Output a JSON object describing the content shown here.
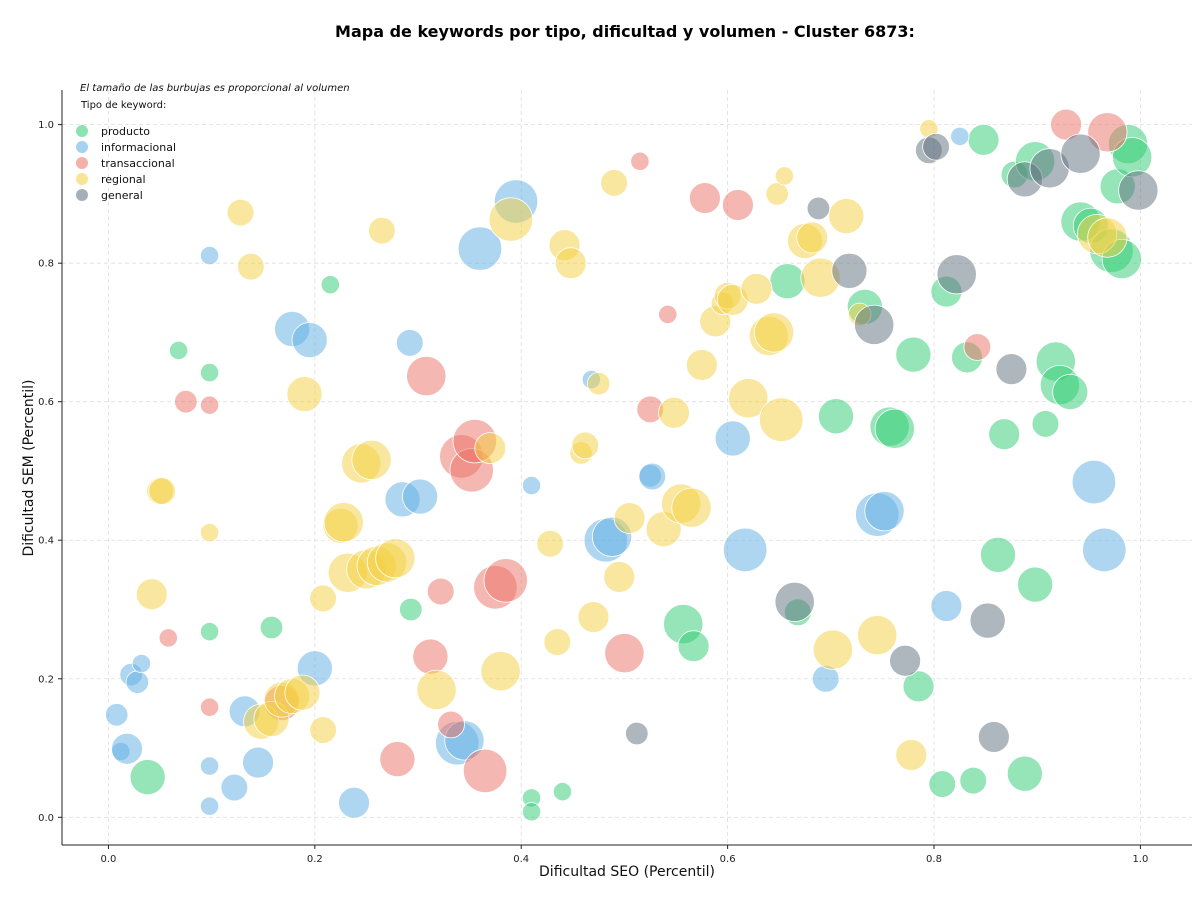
{
  "chart_data": {
    "type": "scatter",
    "title": "Mapa de keywords por tipo, dificultad y volumen - Cluster 6873:",
    "xlabel": "Dificultad SEO (Percentil)",
    "ylabel": "Dificultad SEM (Percentil)",
    "xlim": [
      -0.045,
      1.05
    ],
    "ylim": [
      -0.04,
      1.05
    ],
    "xticks": [
      "0.0",
      "0.2",
      "0.4",
      "0.6",
      "0.8",
      "1.0"
    ],
    "yticks": [
      "0.0",
      "0.2",
      "0.4",
      "0.6",
      "0.8",
      "1.0"
    ],
    "grid": true,
    "legend_placement": "top-left",
    "note": "El tamaño de las burbujas es proporcional al volumen",
    "legend_title": "Tipo de keyword:",
    "series": [
      {
        "name": "producto",
        "color": "#2ecc71",
        "points": [
          [
            0.038,
            0.058,
            3
          ],
          [
            0.068,
            0.674,
            1
          ],
          [
            0.098,
            0.642,
            1
          ],
          [
            0.098,
            0.268,
            1
          ],
          [
            0.158,
            0.274,
            1.5
          ],
          [
            0.215,
            0.769,
            1
          ],
          [
            0.293,
            0.3,
            1.5
          ],
          [
            0.41,
            0.028,
            1
          ],
          [
            0.41,
            0.008,
            1
          ],
          [
            0.44,
            0.037,
            1
          ],
          [
            0.557,
            0.279,
            3.5
          ],
          [
            0.567,
            0.247,
            2.5
          ],
          [
            0.658,
            0.774,
            3
          ],
          [
            0.668,
            0.296,
            2
          ],
          [
            0.705,
            0.579,
            3
          ],
          [
            0.733,
            0.737,
            3
          ],
          [
            0.757,
            0.564,
            3.5
          ],
          [
            0.762,
            0.561,
            3.5
          ],
          [
            0.78,
            0.668,
            3
          ],
          [
            0.785,
            0.189,
            2.5
          ],
          [
            0.808,
            0.048,
            2
          ],
          [
            0.812,
            0.759,
            2.5
          ],
          [
            0.832,
            0.664,
            2.5
          ],
          [
            0.838,
            0.053,
            2
          ],
          [
            0.848,
            0.978,
            2.5
          ],
          [
            0.862,
            0.379,
            3
          ],
          [
            0.868,
            0.553,
            2.5
          ],
          [
            0.878,
            0.928,
            2
          ],
          [
            0.888,
            0.063,
            3
          ],
          [
            0.898,
            0.336,
            3
          ],
          [
            0.898,
            0.947,
            3.5
          ],
          [
            0.908,
            0.568,
            2
          ],
          [
            0.918,
            0.658,
            3.5
          ],
          [
            0.922,
            0.624,
            3.5
          ],
          [
            0.932,
            0.614,
            3
          ],
          [
            0.942,
            0.86,
            3.5
          ],
          [
            0.952,
            0.854,
            3
          ],
          [
            0.978,
            0.911,
            3
          ],
          [
            0.988,
            0.972,
            3.5
          ],
          [
            0.992,
            0.953,
            3.5
          ],
          [
            0.972,
            0.818,
            4
          ],
          [
            0.982,
            0.806,
            3.5
          ]
        ]
      },
      {
        "name": "informacional",
        "color": "#5dade2",
        "points": [
          [
            0.008,
            0.148,
            1.5
          ],
          [
            0.012,
            0.095,
            1
          ],
          [
            0.018,
            0.099,
            2.5
          ],
          [
            0.022,
            0.206,
            1.5
          ],
          [
            0.028,
            0.195,
            1.5
          ],
          [
            0.032,
            0.222,
            1
          ],
          [
            0.098,
            0.811,
            1
          ],
          [
            0.098,
            0.074,
            1
          ],
          [
            0.098,
            0.016,
            1
          ],
          [
            0.122,
            0.043,
            2
          ],
          [
            0.132,
            0.153,
            2.5
          ],
          [
            0.145,
            0.079,
            2.5
          ],
          [
            0.178,
            0.705,
            3
          ],
          [
            0.195,
            0.689,
            3
          ],
          [
            0.2,
            0.215,
            3
          ],
          [
            0.238,
            0.021,
            2.5
          ],
          [
            0.292,
            0.685,
            2
          ],
          [
            0.285,
            0.459,
            3
          ],
          [
            0.302,
            0.463,
            3
          ],
          [
            0.338,
            0.107,
            4
          ],
          [
            0.345,
            0.111,
            3.5
          ],
          [
            0.36,
            0.821,
            4
          ],
          [
            0.395,
            0.889,
            4
          ],
          [
            0.41,
            0.479,
            1
          ],
          [
            0.468,
            0.632,
            1
          ],
          [
            0.482,
            0.4,
            4
          ],
          [
            0.488,
            0.405,
            3.5
          ],
          [
            0.525,
            0.493,
            1.5
          ],
          [
            0.527,
            0.492,
            2
          ],
          [
            0.605,
            0.547,
            3
          ],
          [
            0.617,
            0.386,
            4
          ],
          [
            0.695,
            0.2,
            2
          ],
          [
            0.745,
            0.437,
            4
          ],
          [
            0.752,
            0.442,
            3.5
          ],
          [
            0.812,
            0.305,
            2.5
          ],
          [
            0.825,
            0.983,
            1
          ],
          [
            0.955,
            0.484,
            4
          ],
          [
            0.965,
            0.386,
            4
          ]
        ]
      },
      {
        "name": "transaccional",
        "color": "#ec7063",
        "points": [
          [
            0.058,
            0.259,
            1
          ],
          [
            0.075,
            0.6,
            1.5
          ],
          [
            0.098,
            0.595,
            1
          ],
          [
            0.098,
            0.159,
            1
          ],
          [
            0.168,
            0.165,
            3
          ],
          [
            0.28,
            0.084,
            3
          ],
          [
            0.308,
            0.637,
            3.5
          ],
          [
            0.312,
            0.232,
            3
          ],
          [
            0.322,
            0.326,
            2
          ],
          [
            0.332,
            0.134,
            2
          ],
          [
            0.342,
            0.521,
            4
          ],
          [
            0.352,
            0.501,
            4
          ],
          [
            0.355,
            0.543,
            4
          ],
          [
            0.365,
            0.067,
            4
          ],
          [
            0.375,
            0.332,
            4
          ],
          [
            0.385,
            0.342,
            4
          ],
          [
            0.5,
            0.237,
            3.5
          ],
          [
            0.515,
            0.947,
            1
          ],
          [
            0.525,
            0.589,
            2
          ],
          [
            0.542,
            0.726,
            1
          ],
          [
            0.578,
            0.894,
            2.5
          ],
          [
            0.61,
            0.884,
            2.5
          ],
          [
            0.842,
            0.679,
            2
          ],
          [
            0.928,
            1.0,
            2.5
          ],
          [
            0.968,
            0.989,
            3.5
          ]
        ]
      },
      {
        "name": "regional",
        "color": "#f4d03f",
        "points": [
          [
            0.042,
            0.322,
            2.5
          ],
          [
            0.05,
            0.471,
            2
          ],
          [
            0.052,
            0.471,
            2
          ],
          [
            0.098,
            0.411,
            1
          ],
          [
            0.128,
            0.873,
            2
          ],
          [
            0.138,
            0.795,
            2
          ],
          [
            0.148,
            0.138,
            3
          ],
          [
            0.158,
            0.142,
            3
          ],
          [
            0.168,
            0.17,
            3
          ],
          [
            0.178,
            0.175,
            3
          ],
          [
            0.188,
            0.18,
            3
          ],
          [
            0.19,
            0.611,
            3
          ],
          [
            0.208,
            0.316,
            2
          ],
          [
            0.208,
            0.126,
            2
          ],
          [
            0.225,
            0.421,
            3
          ],
          [
            0.228,
            0.426,
            3.5
          ],
          [
            0.232,
            0.353,
            3.5
          ],
          [
            0.245,
            0.511,
            3.5
          ],
          [
            0.25,
            0.358,
            3.5
          ],
          [
            0.255,
            0.516,
            3.5
          ],
          [
            0.26,
            0.363,
            3.5
          ],
          [
            0.265,
            0.847,
            2
          ],
          [
            0.27,
            0.368,
            3.5
          ],
          [
            0.278,
            0.374,
            3.5
          ],
          [
            0.318,
            0.184,
            3.5
          ],
          [
            0.37,
            0.533,
            2.5
          ],
          [
            0.38,
            0.211,
            3.5
          ],
          [
            0.39,
            0.863,
            4
          ],
          [
            0.428,
            0.395,
            2
          ],
          [
            0.435,
            0.253,
            2
          ],
          [
            0.442,
            0.826,
            2.5
          ],
          [
            0.448,
            0.8,
            2.5
          ],
          [
            0.458,
            0.526,
            1.5
          ],
          [
            0.462,
            0.537,
            2
          ],
          [
            0.47,
            0.289,
            2.5
          ],
          [
            0.475,
            0.626,
            1.5
          ],
          [
            0.49,
            0.916,
            2
          ],
          [
            0.495,
            0.347,
            2.5
          ],
          [
            0.505,
            0.432,
            2.5
          ],
          [
            0.538,
            0.416,
            3
          ],
          [
            0.548,
            0.584,
            2.5
          ],
          [
            0.555,
            0.453,
            3.5
          ],
          [
            0.565,
            0.447,
            3.5
          ],
          [
            0.575,
            0.653,
            2.5
          ],
          [
            0.588,
            0.716,
            2.5
          ],
          [
            0.595,
            0.742,
            1.5
          ],
          [
            0.6,
            0.753,
            2
          ],
          [
            0.605,
            0.747,
            2.5
          ],
          [
            0.62,
            0.605,
            3.5
          ],
          [
            0.628,
            0.763,
            2.5
          ],
          [
            0.64,
            0.695,
            3.5
          ],
          [
            0.645,
            0.7,
            3.5
          ],
          [
            0.648,
            0.9,
            1.5
          ],
          [
            0.652,
            0.574,
            4
          ],
          [
            0.655,
            0.926,
            1
          ],
          [
            0.675,
            0.832,
            3
          ],
          [
            0.682,
            0.837,
            2.5
          ],
          [
            0.69,
            0.779,
            3.5
          ],
          [
            0.702,
            0.242,
            3.5
          ],
          [
            0.715,
            0.868,
            3
          ],
          [
            0.728,
            0.726,
            1.5
          ],
          [
            0.745,
            0.263,
            3.5
          ],
          [
            0.778,
            0.09,
            2.5
          ],
          [
            0.795,
            0.994,
            1
          ],
          [
            0.958,
            0.842,
            3.5
          ],
          [
            0.968,
            0.837,
            3.5
          ]
        ]
      },
      {
        "name": "general",
        "color": "#5d6d7e",
        "points": [
          [
            0.512,
            0.121,
            1.5
          ],
          [
            0.665,
            0.311,
            3.5
          ],
          [
            0.688,
            0.879,
            1.5
          ],
          [
            0.718,
            0.789,
            3
          ],
          [
            0.742,
            0.711,
            3.5
          ],
          [
            0.772,
            0.226,
            2.5
          ],
          [
            0.795,
            0.963,
            2
          ],
          [
            0.802,
            0.968,
            2
          ],
          [
            0.822,
            0.784,
            3.5
          ],
          [
            0.852,
            0.284,
            3
          ],
          [
            0.858,
            0.116,
            2.5
          ],
          [
            0.875,
            0.647,
            2.5
          ],
          [
            0.888,
            0.921,
            3
          ],
          [
            0.912,
            0.937,
            3.5
          ],
          [
            0.942,
            0.958,
            3.5
          ],
          [
            0.998,
            0.905,
            3.5
          ]
        ]
      }
    ]
  }
}
